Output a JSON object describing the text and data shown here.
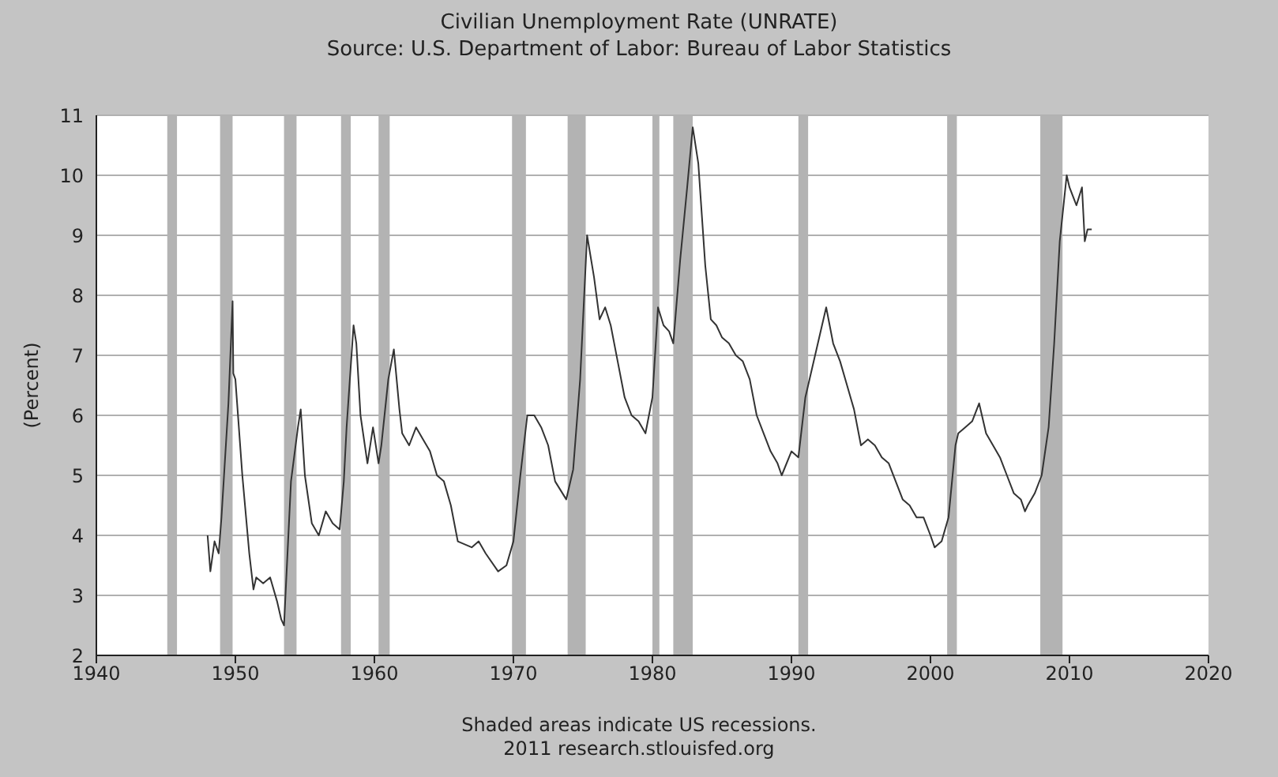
{
  "chart_data": {
    "type": "line",
    "title": "Civilian Unemployment Rate (UNRATE)",
    "subtitle": "Source: U.S. Department of Labor: Bureau of Labor Statistics",
    "ylabel": "(Percent)",
    "x": [
      1948.0,
      1948.2,
      1948.5,
      1948.8,
      1949.0,
      1949.5,
      1949.8,
      1949.85,
      1950.0,
      1950.5,
      1951.0,
      1951.3,
      1951.5,
      1952.0,
      1952.5,
      1953.0,
      1953.3,
      1953.5,
      1954.0,
      1954.5,
      1954.7,
      1955.0,
      1955.5,
      1956.0,
      1956.5,
      1957.0,
      1957.5,
      1957.8,
      1958.0,
      1958.5,
      1958.7,
      1959.0,
      1959.5,
      1959.9,
      1960.3,
      1960.5,
      1961.0,
      1961.4,
      1961.8,
      1962.0,
      1962.5,
      1963.0,
      1963.5,
      1964.0,
      1964.5,
      1965.0,
      1965.5,
      1966.0,
      1967.0,
      1967.5,
      1968.0,
      1968.9,
      1969.5,
      1970.0,
      1970.5,
      1971.0,
      1971.5,
      1972.0,
      1972.5,
      1973.0,
      1973.8,
      1974.3,
      1974.8,
      1975.3,
      1975.8,
      1976.2,
      1976.6,
      1977.0,
      1977.5,
      1978.0,
      1978.5,
      1979.0,
      1979.5,
      1980.0,
      1980.4,
      1980.8,
      1981.2,
      1981.5,
      1982.0,
      1982.5,
      1982.9,
      1983.3,
      1983.8,
      1984.2,
      1984.6,
      1985.0,
      1985.5,
      1986.0,
      1986.5,
      1987.0,
      1987.5,
      1988.0,
      1988.5,
      1989.0,
      1989.3,
      1990.0,
      1990.5,
      1991.0,
      1991.5,
      1992.0,
      1992.5,
      1993.0,
      1993.5,
      1994.0,
      1994.5,
      1995.0,
      1995.5,
      1996.0,
      1996.5,
      1997.0,
      1997.5,
      1998.0,
      1998.5,
      1999.0,
      1999.5,
      2000.0,
      2000.3,
      2000.8,
      2001.3,
      2001.8,
      2002.0,
      2002.5,
      2003.0,
      2003.5,
      2004.0,
      2004.5,
      2005.0,
      2005.5,
      2006.0,
      2006.5,
      2006.8,
      2007.0,
      2007.5,
      2008.0,
      2008.5,
      2008.9,
      2009.3,
      2009.8,
      2010.0,
      2010.5,
      2010.9,
      2011.1,
      2011.3,
      2011.6
    ],
    "values": [
      4.0,
      3.4,
      3.9,
      3.7,
      4.3,
      6.2,
      7.9,
      6.7,
      6.6,
      5.0,
      3.7,
      3.1,
      3.3,
      3.2,
      3.3,
      2.9,
      2.6,
      2.5,
      4.9,
      5.8,
      6.1,
      5.0,
      4.2,
      4.0,
      4.4,
      4.2,
      4.1,
      4.9,
      5.8,
      7.5,
      7.2,
      6.0,
      5.2,
      5.8,
      5.2,
      5.5,
      6.6,
      7.1,
      6.1,
      5.7,
      5.5,
      5.8,
      5.6,
      5.4,
      5.0,
      4.9,
      4.5,
      3.9,
      3.8,
      3.9,
      3.7,
      3.4,
      3.5,
      3.9,
      5.0,
      6.0,
      6.0,
      5.8,
      5.5,
      4.9,
      4.6,
      5.1,
      6.6,
      9.0,
      8.3,
      7.6,
      7.8,
      7.5,
      6.9,
      6.3,
      6.0,
      5.9,
      5.7,
      6.3,
      7.8,
      7.5,
      7.4,
      7.2,
      8.6,
      9.8,
      10.8,
      10.2,
      8.5,
      7.6,
      7.5,
      7.3,
      7.2,
      7.0,
      6.9,
      6.6,
      6.0,
      5.7,
      5.4,
      5.2,
      5.0,
      5.4,
      5.3,
      6.3,
      6.8,
      7.3,
      7.8,
      7.2,
      6.9,
      6.5,
      6.1,
      5.5,
      5.6,
      5.5,
      5.3,
      5.2,
      4.9,
      4.6,
      4.5,
      4.3,
      4.3,
      4.0,
      3.8,
      3.9,
      4.3,
      5.5,
      5.7,
      5.8,
      5.9,
      6.2,
      5.7,
      5.5,
      5.3,
      5.0,
      4.7,
      4.6,
      4.4,
      4.5,
      4.7,
      5.0,
      5.8,
      7.2,
      8.9,
      10.0,
      9.8,
      9.5,
      9.8,
      8.9,
      9.1,
      9.1
    ],
    "color": "#333333",
    "xlim": [
      1940,
      2020
    ],
    "xticks": [
      1940,
      1950,
      1960,
      1970,
      1980,
      1990,
      2000,
      2010,
      2020
    ],
    "ylim": [
      2,
      11
    ],
    "yticks": [
      2,
      3,
      4,
      5,
      6,
      7,
      8,
      9,
      10,
      11
    ],
    "grid": "y",
    "bands": [
      {
        "axis": "x",
        "from": 1945.1,
        "to": 1945.8,
        "color": "#b3b3b3"
      },
      {
        "axis": "x",
        "from": 1948.9,
        "to": 1949.8,
        "color": "#b3b3b3"
      },
      {
        "axis": "x",
        "from": 1953.5,
        "to": 1954.4,
        "color": "#b3b3b3"
      },
      {
        "axis": "x",
        "from": 1957.6,
        "to": 1958.3,
        "color": "#b3b3b3"
      },
      {
        "axis": "x",
        "from": 1960.3,
        "to": 1961.1,
        "color": "#b3b3b3"
      },
      {
        "axis": "x",
        "from": 1969.9,
        "to": 1970.9,
        "color": "#b3b3b3"
      },
      {
        "axis": "x",
        "from": 1973.9,
        "to": 1975.2,
        "color": "#b3b3b3"
      },
      {
        "axis": "x",
        "from": 1980.0,
        "to": 1980.5,
        "color": "#b3b3b3"
      },
      {
        "axis": "x",
        "from": 1981.5,
        "to": 1982.9,
        "color": "#b3b3b3"
      },
      {
        "axis": "x",
        "from": 1990.5,
        "to": 1991.2,
        "color": "#b3b3b3"
      },
      {
        "axis": "x",
        "from": 2001.2,
        "to": 2001.9,
        "color": "#b3b3b3"
      },
      {
        "axis": "x",
        "from": 2007.9,
        "to": 2009.5,
        "color": "#b3b3b3"
      }
    ],
    "annotations": [
      "Shaded areas indicate US recessions.",
      "2011 research.stlouisfed.org"
    ]
  }
}
